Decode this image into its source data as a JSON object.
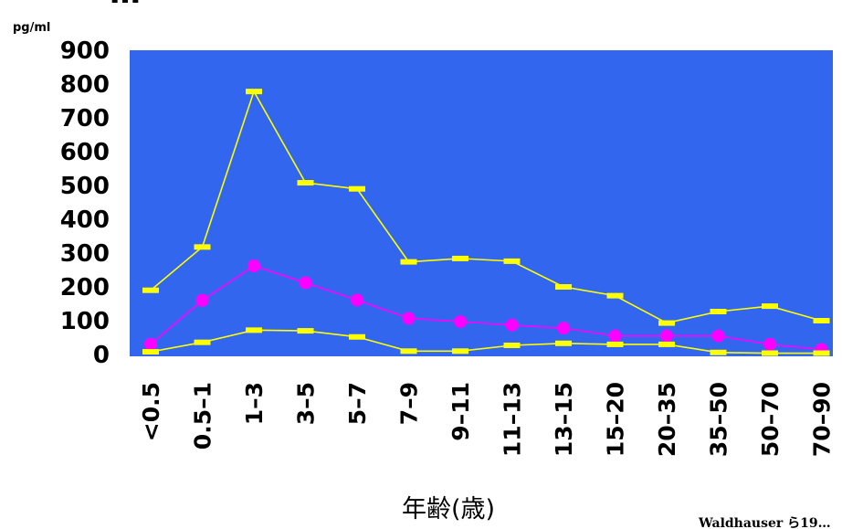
{
  "chart_data": {
    "type": "line",
    "title": "…",
    "unit_label": "pg/ml",
    "xlabel": "年齢(歳)",
    "ylabel": "",
    "source": "Waldhauser ら19…",
    "ylim": [
      0,
      900
    ],
    "yticks": [
      "900",
      "800",
      "700",
      "600",
      "500",
      "400",
      "300",
      "200",
      "100",
      "0"
    ],
    "categories": [
      "<0.5",
      "0.5-1",
      "1-3",
      "3-5",
      "5-7",
      "7-9",
      "9-11",
      "11-13",
      "13-15",
      "15-20",
      "20-35",
      "35-50",
      "50-70",
      "70-90"
    ],
    "series": [
      {
        "values": [
          190,
          318,
          778,
          508,
          490,
          274,
          284,
          276,
          200,
          174,
          93,
          127,
          143,
          100
        ],
        "color": "#ffff00",
        "marker": "dash"
      },
      {
        "values": [
          30,
          160,
          262,
          212,
          161,
          107,
          97,
          87,
          78,
          55,
          55,
          55,
          30,
          15
        ],
        "color": "#ff00ff",
        "marker": "circle"
      },
      {
        "values": [
          8,
          36,
          72,
          70,
          52,
          10,
          10,
          27,
          33,
          30,
          30,
          6,
          4,
          4
        ],
        "color": "#ffff00",
        "marker": "dash"
      }
    ],
    "plot_background": "#3366ee",
    "grid": false
  }
}
